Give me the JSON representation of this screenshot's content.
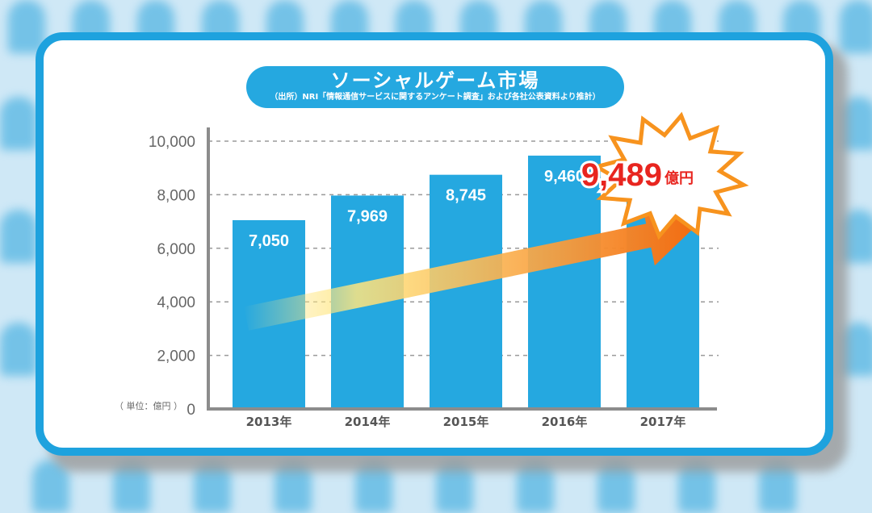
{
  "title": "ソーシャルゲーム市場",
  "source": "（出所）NRI「情報通信サービスに関するアンケート調査」および各社公表資料より推計）",
  "unit_note": "（ 単位：億円 ）",
  "colors": {
    "bar": "#25a8e0",
    "frame": "#1ea2de",
    "burst_fill": "#ffffff",
    "burst_stroke": "#f7931e",
    "highlight_text": "#e8251f",
    "arrow_start": "#ffe680",
    "arrow_end": "#f36b10"
  },
  "highlight": {
    "value": "9,489",
    "unit": "億円"
  },
  "chart_data": {
    "type": "bar",
    "categories": [
      "2013年",
      "2014年",
      "2015年",
      "2016年",
      "2017年"
    ],
    "values": [
      7050,
      7969,
      8745,
      9460,
      9489
    ],
    "data_labels": [
      "7,050",
      "7,969",
      "8,745",
      "9,460",
      ""
    ],
    "yticks": [
      0,
      2000,
      4000,
      6000,
      8000,
      10000
    ],
    "ytick_labels": [
      "0",
      "2,000",
      "4,000",
      "6,000",
      "8,000",
      "10,000"
    ],
    "ylim": [
      0,
      10000
    ],
    "grid": true,
    "title": "ソーシャルゲーム市場",
    "xlabel": "",
    "ylabel": ""
  }
}
